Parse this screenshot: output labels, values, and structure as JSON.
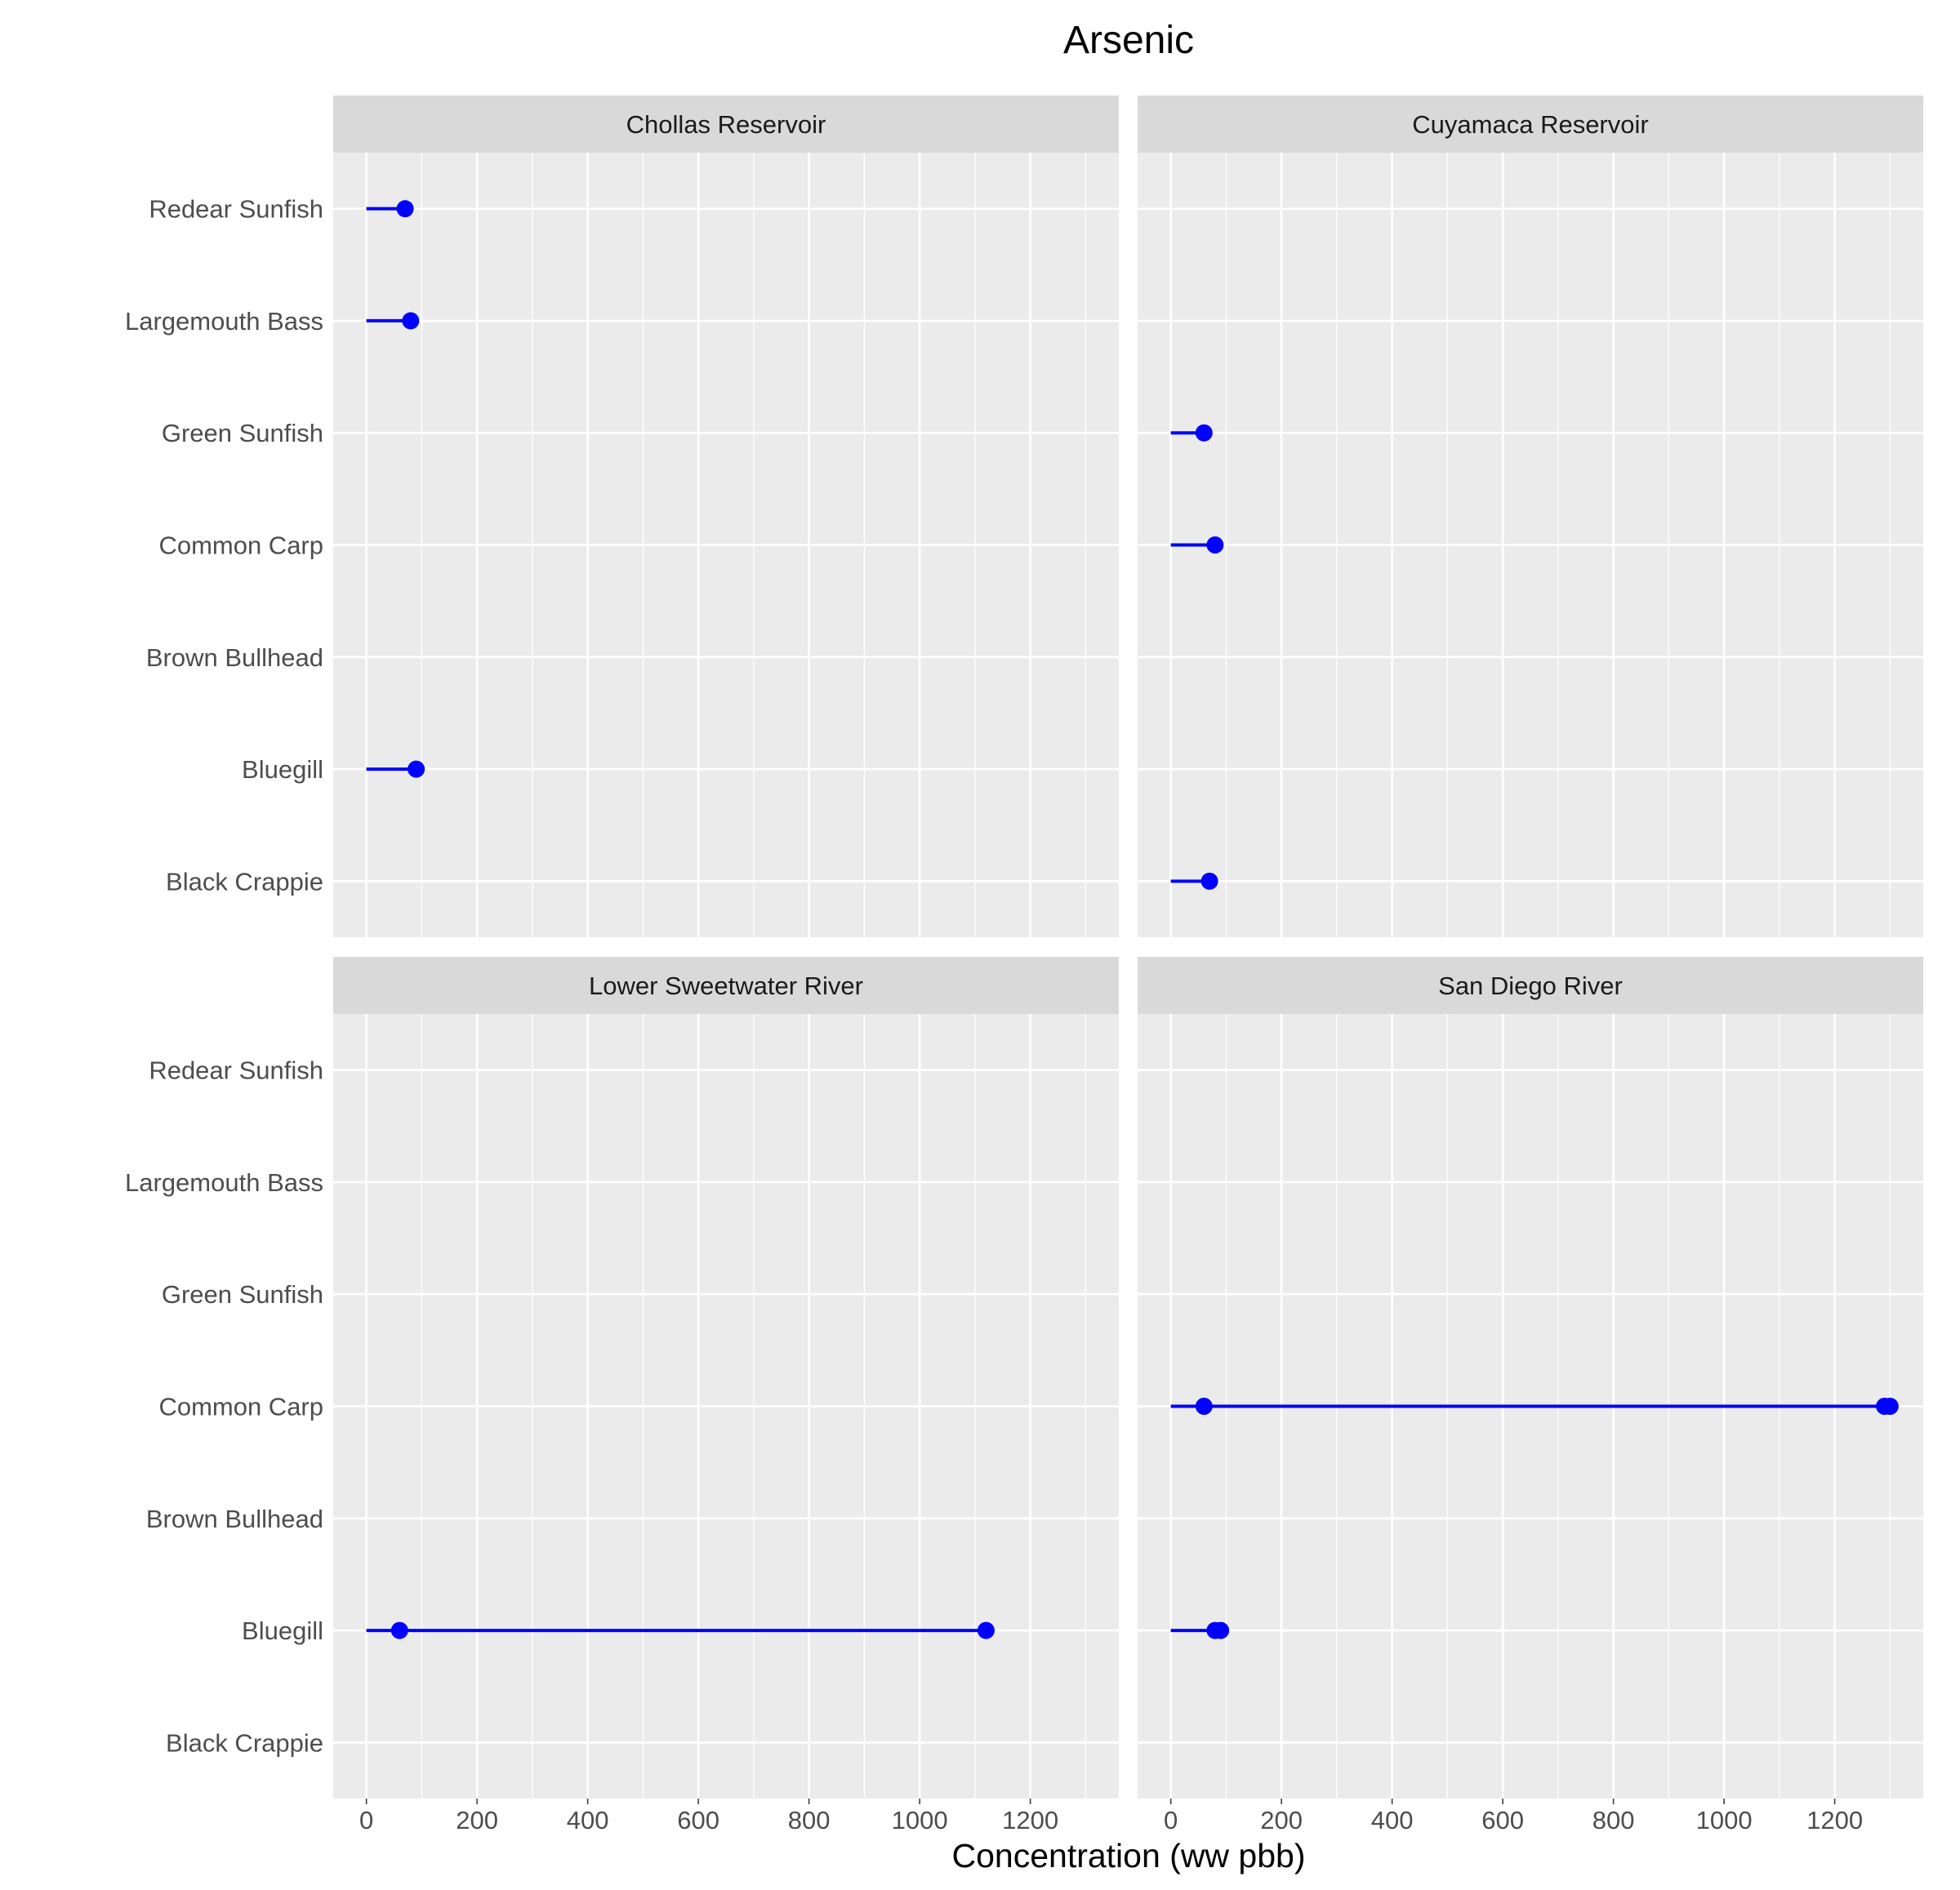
{
  "chart_data": {
    "type": "scatter",
    "title": "Arsenic",
    "xlabel": "Concentration (ww pbb)",
    "ylabel": "",
    "xlim": [
      -60,
      1360
    ],
    "x_ticks": [
      0,
      200,
      400,
      600,
      800,
      1000,
      1200
    ],
    "x_tick_labels": [
      "0",
      "200",
      "400",
      "600",
      "800",
      "1000",
      "1200"
    ],
    "categories": [
      "Redear Sunfish",
      "Largemouth Bass",
      "Green Sunfish",
      "Common Carp",
      "Brown Bullhead",
      "Bluegill",
      "Black Crappie"
    ],
    "grid": true,
    "legend": "none",
    "point_color": "#0000ff",
    "panel_background": "#ebebeb",
    "strip_background": "#d9d9d9",
    "facets": [
      {
        "name": "Chollas Reservoir",
        "points": [
          {
            "species": "Redear Sunfish",
            "values": [
              70
            ]
          },
          {
            "species": "Largemouth Bass",
            "values": [
              80
            ]
          },
          {
            "species": "Bluegill",
            "values": [
              90
            ]
          }
        ]
      },
      {
        "name": "Cuyamaca Reservoir",
        "points": [
          {
            "species": "Green Sunfish",
            "values": [
              60
            ]
          },
          {
            "species": "Common Carp",
            "values": [
              80
            ]
          },
          {
            "species": "Black Crappie",
            "values": [
              70
            ]
          }
        ]
      },
      {
        "name": "Lower Sweetwater River",
        "points": [
          {
            "species": "Bluegill",
            "values": [
              60,
              1120
            ]
          }
        ]
      },
      {
        "name": "San Diego River",
        "points": [
          {
            "species": "Common Carp",
            "values": [
              60,
              1290,
              1300
            ]
          },
          {
            "species": "Bluegill",
            "values": [
              80,
              90
            ]
          }
        ]
      }
    ]
  }
}
